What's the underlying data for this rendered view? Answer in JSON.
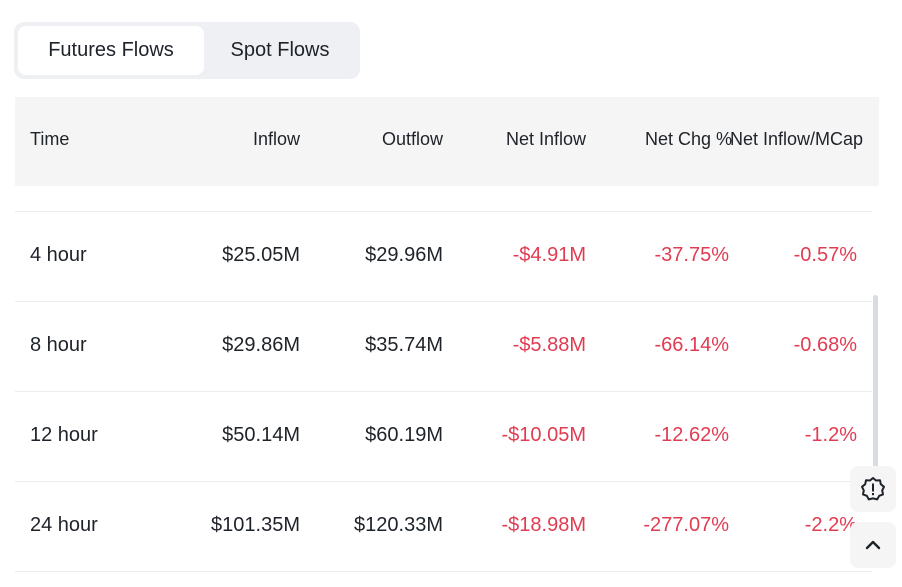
{
  "tabs": [
    {
      "label": "Futures Flows",
      "active": true
    },
    {
      "label": "Spot Flows",
      "active": false
    }
  ],
  "table": {
    "headers": [
      "Time",
      "Inflow",
      "Outflow",
      "Net Inflow",
      "Net Chg %",
      "Net Inflow/MCap"
    ],
    "rows": [
      {
        "time": "4 hour",
        "inflow": "$25.05M",
        "outflow": "$29.96M",
        "net_inflow": "-$4.91M",
        "net_chg": "-37.75%",
        "net_mcap": "-0.57%"
      },
      {
        "time": "8 hour",
        "inflow": "$29.86M",
        "outflow": "$35.74M",
        "net_inflow": "-$5.88M",
        "net_chg": "-66.14%",
        "net_mcap": "-0.68%"
      },
      {
        "time": "12 hour",
        "inflow": "$50.14M",
        "outflow": "$60.19M",
        "net_inflow": "-$10.05M",
        "net_chg": "-12.62%",
        "net_mcap": "-1.2%"
      },
      {
        "time": "24 hour",
        "inflow": "$101.35M",
        "outflow": "$120.33M",
        "net_inflow": "-$18.98M",
        "net_chg": "-277.07%",
        "net_mcap": "-2.2%"
      }
    ]
  },
  "colors": {
    "negative": "#e03c52",
    "header_bg": "#f5f5f5",
    "tab_bg": "#eef0f3"
  },
  "floating": {
    "feedback_icon": "alert-badge-icon",
    "top_icon": "chevron-up-icon"
  }
}
